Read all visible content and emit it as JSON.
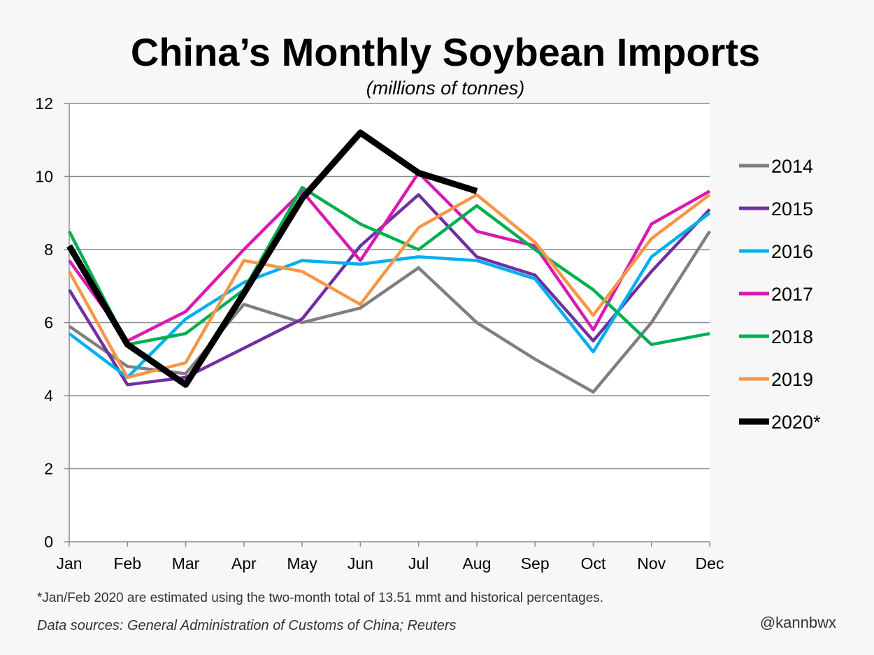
{
  "chart_data": {
    "type": "line",
    "title": "China’s Monthly Soybean Imports",
    "subtitle": "(millions of tonnes)",
    "categories": [
      "Jan",
      "Feb",
      "Mar",
      "Apr",
      "May",
      "Jun",
      "Jul",
      "Aug",
      "Sep",
      "Oct",
      "Nov",
      "Dec"
    ],
    "ylim": [
      0,
      12
    ],
    "yticks": [
      0,
      2,
      4,
      6,
      8,
      10,
      12
    ],
    "grid": true,
    "legend_position": "right",
    "series": [
      {
        "name": "2014",
        "color": "#7f7f7f",
        "values": [
          5.9,
          4.8,
          4.6,
          6.5,
          6.0,
          6.4,
          7.5,
          6.0,
          5.0,
          4.1,
          6.0,
          8.5
        ]
      },
      {
        "name": "2015",
        "color": "#7030a0",
        "values": [
          6.9,
          4.3,
          4.5,
          5.3,
          6.1,
          8.1,
          9.5,
          7.8,
          7.3,
          5.5,
          7.4,
          9.1
        ]
      },
      {
        "name": "2016",
        "color": "#00b0f0",
        "values": [
          5.7,
          4.5,
          6.1,
          7.1,
          7.7,
          7.6,
          7.8,
          7.7,
          7.2,
          5.2,
          7.8,
          9.0
        ]
      },
      {
        "name": "2017",
        "color": "#d91ab1",
        "values": [
          7.7,
          5.5,
          6.3,
          8.0,
          9.6,
          7.7,
          10.1,
          8.5,
          8.1,
          5.8,
          8.7,
          9.6
        ]
      },
      {
        "name": "2018",
        "color": "#00b050",
        "values": [
          8.5,
          5.4,
          5.7,
          6.9,
          9.7,
          8.7,
          8.0,
          9.2,
          8.0,
          6.9,
          5.4,
          5.7
        ]
      },
      {
        "name": "2019",
        "color": "#f79646",
        "values": [
          7.4,
          4.5,
          4.9,
          7.7,
          7.4,
          6.5,
          8.6,
          9.5,
          8.2,
          6.2,
          8.3,
          9.5
        ]
      },
      {
        "name": "2020*",
        "color": "#000000",
        "values": [
          8.1,
          5.4,
          4.3,
          6.8,
          9.4,
          11.2,
          10.1,
          9.6,
          null,
          null,
          null,
          null
        ]
      }
    ],
    "footnote": "*Jan/Feb 2020 are estimated using the two-month total of 13.51 mmt and historical percentages.",
    "source": "Data sources: General Administration of Customs of China; Reuters",
    "credit": "@kannbwx"
  }
}
